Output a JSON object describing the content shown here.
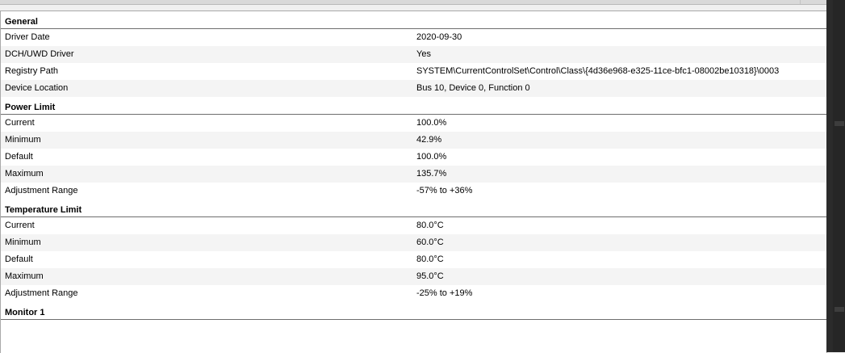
{
  "sections": [
    {
      "title": "General",
      "rows": [
        {
          "label": "Driver Date",
          "value": "2020-09-30"
        },
        {
          "label": "DCH/UWD Driver",
          "value": "Yes"
        },
        {
          "label": "Registry Path",
          "value": "SYSTEM\\CurrentControlSet\\Control\\Class\\{4d36e968-e325-11ce-bfc1-08002be10318}\\0003"
        },
        {
          "label": "Device Location",
          "value": "Bus 10, Device 0, Function 0"
        }
      ]
    },
    {
      "title": "Power Limit",
      "rows": [
        {
          "label": "Current",
          "value": "100.0%"
        },
        {
          "label": "Minimum",
          "value": "42.9%"
        },
        {
          "label": "Default",
          "value": "100.0%"
        },
        {
          "label": "Maximum",
          "value": "135.7%"
        },
        {
          "label": "Adjustment Range",
          "value": "-57% to +36%"
        }
      ]
    },
    {
      "title": "Temperature Limit",
      "rows": [
        {
          "label": "Current",
          "value": "80.0°C"
        },
        {
          "label": "Minimum",
          "value": "60.0°C"
        },
        {
          "label": "Default",
          "value": "80.0°C"
        },
        {
          "label": "Maximum",
          "value": "95.0°C"
        },
        {
          "label": "Adjustment Range",
          "value": "-25% to +19%"
        }
      ]
    },
    {
      "title": "Monitor 1",
      "rows": []
    }
  ]
}
